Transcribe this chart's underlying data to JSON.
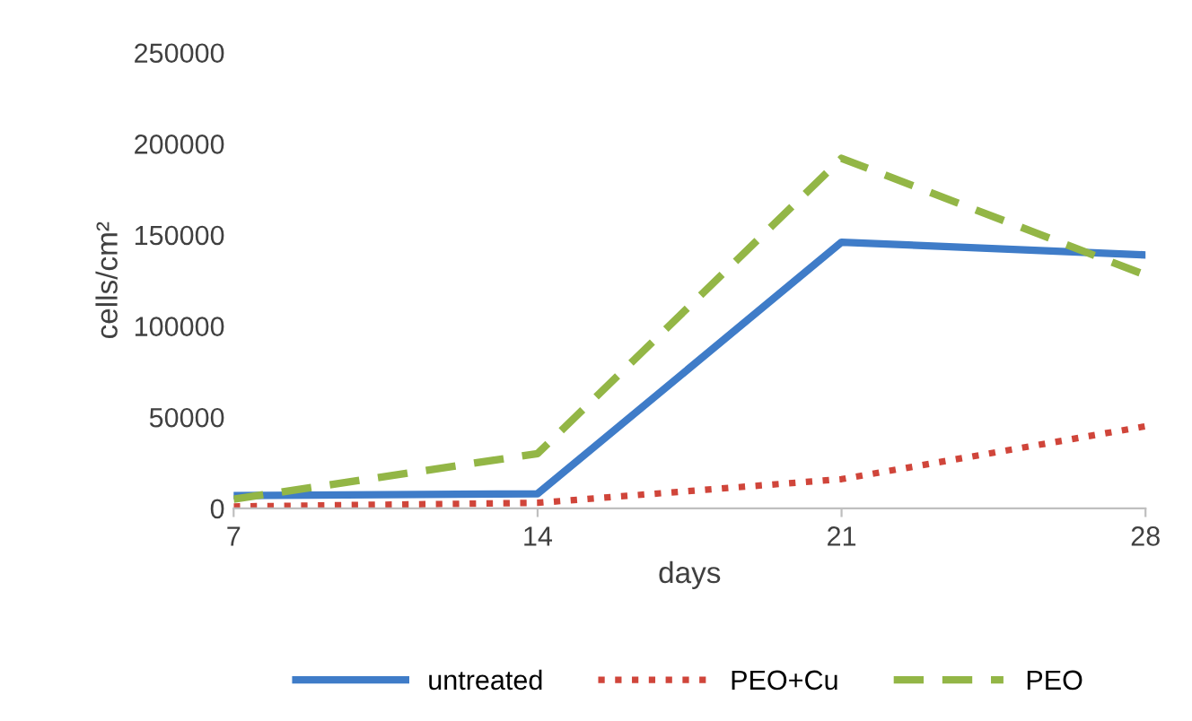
{
  "chart_data": {
    "type": "line",
    "xlabel": "days",
    "ylabel": "cells/cm²",
    "x": [
      7,
      14,
      21,
      28
    ],
    "series": [
      {
        "name": "untreated",
        "color": "#3f7cc8",
        "line_style": "solid",
        "values": [
          7000,
          8000,
          146000,
          139000
        ]
      },
      {
        "name": "PEO+Cu",
        "color": "#d0453a",
        "line_style": "dotted",
        "values": [
          1000,
          3000,
          16000,
          45000
        ]
      },
      {
        "name": "PEO",
        "color": "#93b646",
        "line_style": "dashed",
        "values": [
          5000,
          30000,
          192000,
          128000
        ]
      }
    ],
    "xlim": [
      7,
      28
    ],
    "xticks": [
      7,
      14,
      21,
      28
    ],
    "ylim": [
      0,
      250000
    ],
    "yticks": [
      0,
      50000,
      100000,
      150000,
      200000,
      250000
    ],
    "grid": false,
    "legend": "bottom",
    "marker": "none"
  }
}
